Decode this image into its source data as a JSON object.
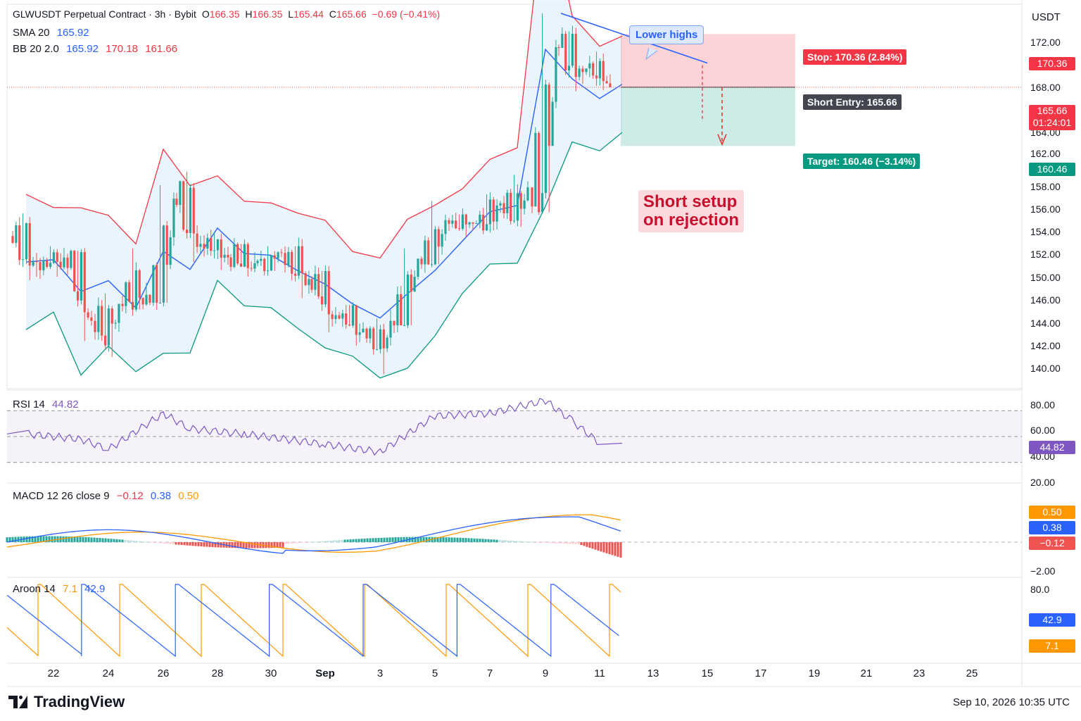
{
  "header": {
    "symbol": "GLWUSDT Perpetual Contract · 3h · Bybit",
    "o_label": "O",
    "o_value": "166.35",
    "h_label": "H",
    "h_value": "166.35",
    "l_label": "L",
    "l_value": "165.44",
    "c_label": "C",
    "c_value": "165.66",
    "change": "−0.69 (−0.41%)"
  },
  "indicators": {
    "sma_label": "SMA 20",
    "sma_value": "165.92",
    "bb_label": "BB 20 2.0",
    "bb_mid": "165.92",
    "bb_upper": "170.18",
    "bb_lower": "161.66",
    "rsi_label": "RSI 14",
    "rsi_value": "44.82",
    "macd_label": "MACD 12 26 close 9",
    "macd_hist": "−0.12",
    "macd_line": "0.38",
    "macd_signal": "0.50",
    "aroon_label": "Aroon 14",
    "aroon_up": "7.1",
    "aroon_down": "42.9"
  },
  "axis": {
    "currency": "USDT",
    "price_ticks": [
      "172.00",
      "168.00",
      "164.00",
      "162.00",
      "158.00",
      "156.00",
      "154.00",
      "152.00",
      "150.00",
      "146.00",
      "144.00",
      "142.00",
      "140.00"
    ],
    "rsi_ticks": [
      "80.00",
      "60.00",
      "40.00",
      "20.00"
    ],
    "macd_ticks": [
      "−2.00"
    ],
    "aroon_ticks": [
      "80.0"
    ],
    "x_ticks": [
      "22",
      "24",
      "26",
      "28",
      "30",
      "Sep",
      "3",
      "5",
      "7",
      "9",
      "11",
      "13",
      "15",
      "17",
      "19",
      "21",
      "23",
      "25"
    ],
    "last_price": "165.66",
    "countdown": "01:24:01",
    "stop_tag": "170.36",
    "target_tag": "160.46",
    "rsi_tag": "44.82",
    "macd_signal_tag": "0.50",
    "macd_line_tag": "0.38",
    "macd_hist_tag": "−0.12",
    "aroon_down_tag": "42.9",
    "aroon_up_tag": "7.1"
  },
  "annotations": {
    "lower_highs": "Lower highs",
    "stop": "Stop: 170.36 (2.84%)",
    "entry": "Short Entry: 165.66",
    "target": "Target: 160.46 (−3.14%)",
    "setup_line1": "Short setup",
    "setup_line2": "on rejection"
  },
  "footer": {
    "brand": "TradingView",
    "timestamp": "Sep 10, 2026 10:35 UTC"
  },
  "colors": {
    "up": "#26a69a",
    "down": "#ef5350",
    "sma": "#2962ff",
    "bb_upper": "#f23645",
    "bb_lower": "#089981",
    "rsi": "#7e57c2",
    "macd": "#2962ff",
    "signal": "#ff9800",
    "aroon_up": "#ff9800",
    "aroon_down": "#2962ff"
  },
  "chart_data": {
    "type": "candlestick",
    "interval": "3h",
    "x_range": [
      "Aug 21",
      "Sep 26"
    ],
    "y_axis_range": [
      139,
      173
    ],
    "daily_summary": [
      {
        "date": "Aug 21",
        "open": 152.5,
        "high": 154.5,
        "low": 148.6,
        "close": 150.2
      },
      {
        "date": "Aug 22",
        "open": 150.2,
        "high": 151.6,
        "low": 148.9,
        "close": 150.6
      },
      {
        "date": "Aug 23",
        "open": 150.6,
        "high": 151.2,
        "low": 143.2,
        "close": 145.0
      },
      {
        "date": "Aug 24",
        "open": 145.0,
        "high": 147.4,
        "low": 141.8,
        "close": 146.5
      },
      {
        "date": "Aug 25",
        "open": 146.5,
        "high": 151.4,
        "low": 146.0,
        "close": 147.3
      },
      {
        "date": "Aug 26",
        "open": 147.3,
        "high": 157.0,
        "low": 146.6,
        "close": 155.8
      },
      {
        "date": "Aug 27",
        "open": 155.8,
        "high": 158.2,
        "low": 150.2,
        "close": 151.8
      },
      {
        "date": "Aug 28",
        "open": 151.8,
        "high": 152.8,
        "low": 149.5,
        "close": 150.6
      },
      {
        "date": "Aug 29",
        "open": 150.6,
        "high": 151.8,
        "low": 148.9,
        "close": 150.1
      },
      {
        "date": "Aug 30",
        "open": 150.1,
        "high": 151.6,
        "low": 149.4,
        "close": 151.0
      },
      {
        "date": "Aug 31",
        "open": 151.0,
        "high": 151.6,
        "low": 147.0,
        "close": 148.7
      },
      {
        "date": "Sep 1",
        "open": 148.7,
        "high": 149.4,
        "low": 144.0,
        "close": 145.5
      },
      {
        "date": "Sep 2",
        "open": 145.5,
        "high": 146.4,
        "low": 142.8,
        "close": 144.3
      },
      {
        "date": "Sep 3",
        "open": 144.3,
        "high": 145.2,
        "low": 140.3,
        "close": 145.0
      },
      {
        "date": "Sep 4",
        "open": 145.0,
        "high": 151.4,
        "low": 144.6,
        "close": 150.5
      },
      {
        "date": "Sep 5",
        "open": 150.5,
        "high": 155.6,
        "low": 150.0,
        "close": 153.9
      },
      {
        "date": "Sep 6",
        "open": 153.9,
        "high": 154.4,
        "low": 152.4,
        "close": 153.6
      },
      {
        "date": "Sep 7",
        "open": 153.6,
        "high": 156.2,
        "low": 153.0,
        "close": 155.4
      },
      {
        "date": "Sep 8",
        "open": 155.4,
        "high": 157.9,
        "low": 153.3,
        "close": 156.8
      },
      {
        "date": "Sep 9",
        "open": 156.8,
        "high": 172.2,
        "low": 154.6,
        "close": 169.2
      },
      {
        "date": "Sep 10",
        "open": 169.2,
        "high": 170.6,
        "low": 165.3,
        "close": 167.0
      },
      {
        "date": "Sep 11",
        "open": 167.0,
        "high": 168.8,
        "low": 165.4,
        "close": 165.66
      }
    ],
    "last": {
      "open": 166.35,
      "high": 166.35,
      "low": 165.44,
      "close": 165.66,
      "change": -0.69,
      "change_pct": -0.41
    },
    "sma20": {
      "last": 165.92
    },
    "bollinger": {
      "period": 20,
      "mult": 2.0,
      "basis": 165.92,
      "upper": 170.18,
      "lower": 161.66
    },
    "trade_setup": {
      "direction": "short",
      "entry": 165.66,
      "stop": 170.36,
      "stop_pct": 2.84,
      "target": 160.46,
      "target_pct": -3.14
    },
    "trendline": {
      "label": "Lower highs",
      "start": {
        "date": "Sep 9",
        "price": 172.2
      },
      "end": {
        "date": "Sep 15",
        "price": 167.8
      }
    },
    "rsi": {
      "period": 14,
      "last": 44.82,
      "upper_band": 70,
      "lower_band": 30,
      "y_ticks": [
        20,
        40,
        60,
        80
      ],
      "daily": [
        {
          "date": "Aug 21",
          "value": 52
        },
        {
          "date": "Aug 23",
          "value": 48
        },
        {
          "date": "Aug 24",
          "value": 40
        },
        {
          "date": "Aug 26",
          "value": 68
        },
        {
          "date": "Aug 27",
          "value": 56
        },
        {
          "date": "Aug 29",
          "value": 52
        },
        {
          "date": "Sep 1",
          "value": 44
        },
        {
          "date": "Sep 3",
          "value": 38
        },
        {
          "date": "Sep 5",
          "value": 66
        },
        {
          "date": "Sep 7",
          "value": 68
        },
        {
          "date": "Sep 9",
          "value": 78
        },
        {
          "date": "Sep 10",
          "value": 62
        },
        {
          "date": "Sep 11",
          "value": 44.82
        }
      ]
    },
    "macd": {
      "fast": 12,
      "slow": 26,
      "signal": 9,
      "hist": -0.12,
      "macd": 0.38,
      "signal_value": 0.5
    },
    "aroon": {
      "period": 14,
      "up": 7.1,
      "down": 42.9
    }
  }
}
